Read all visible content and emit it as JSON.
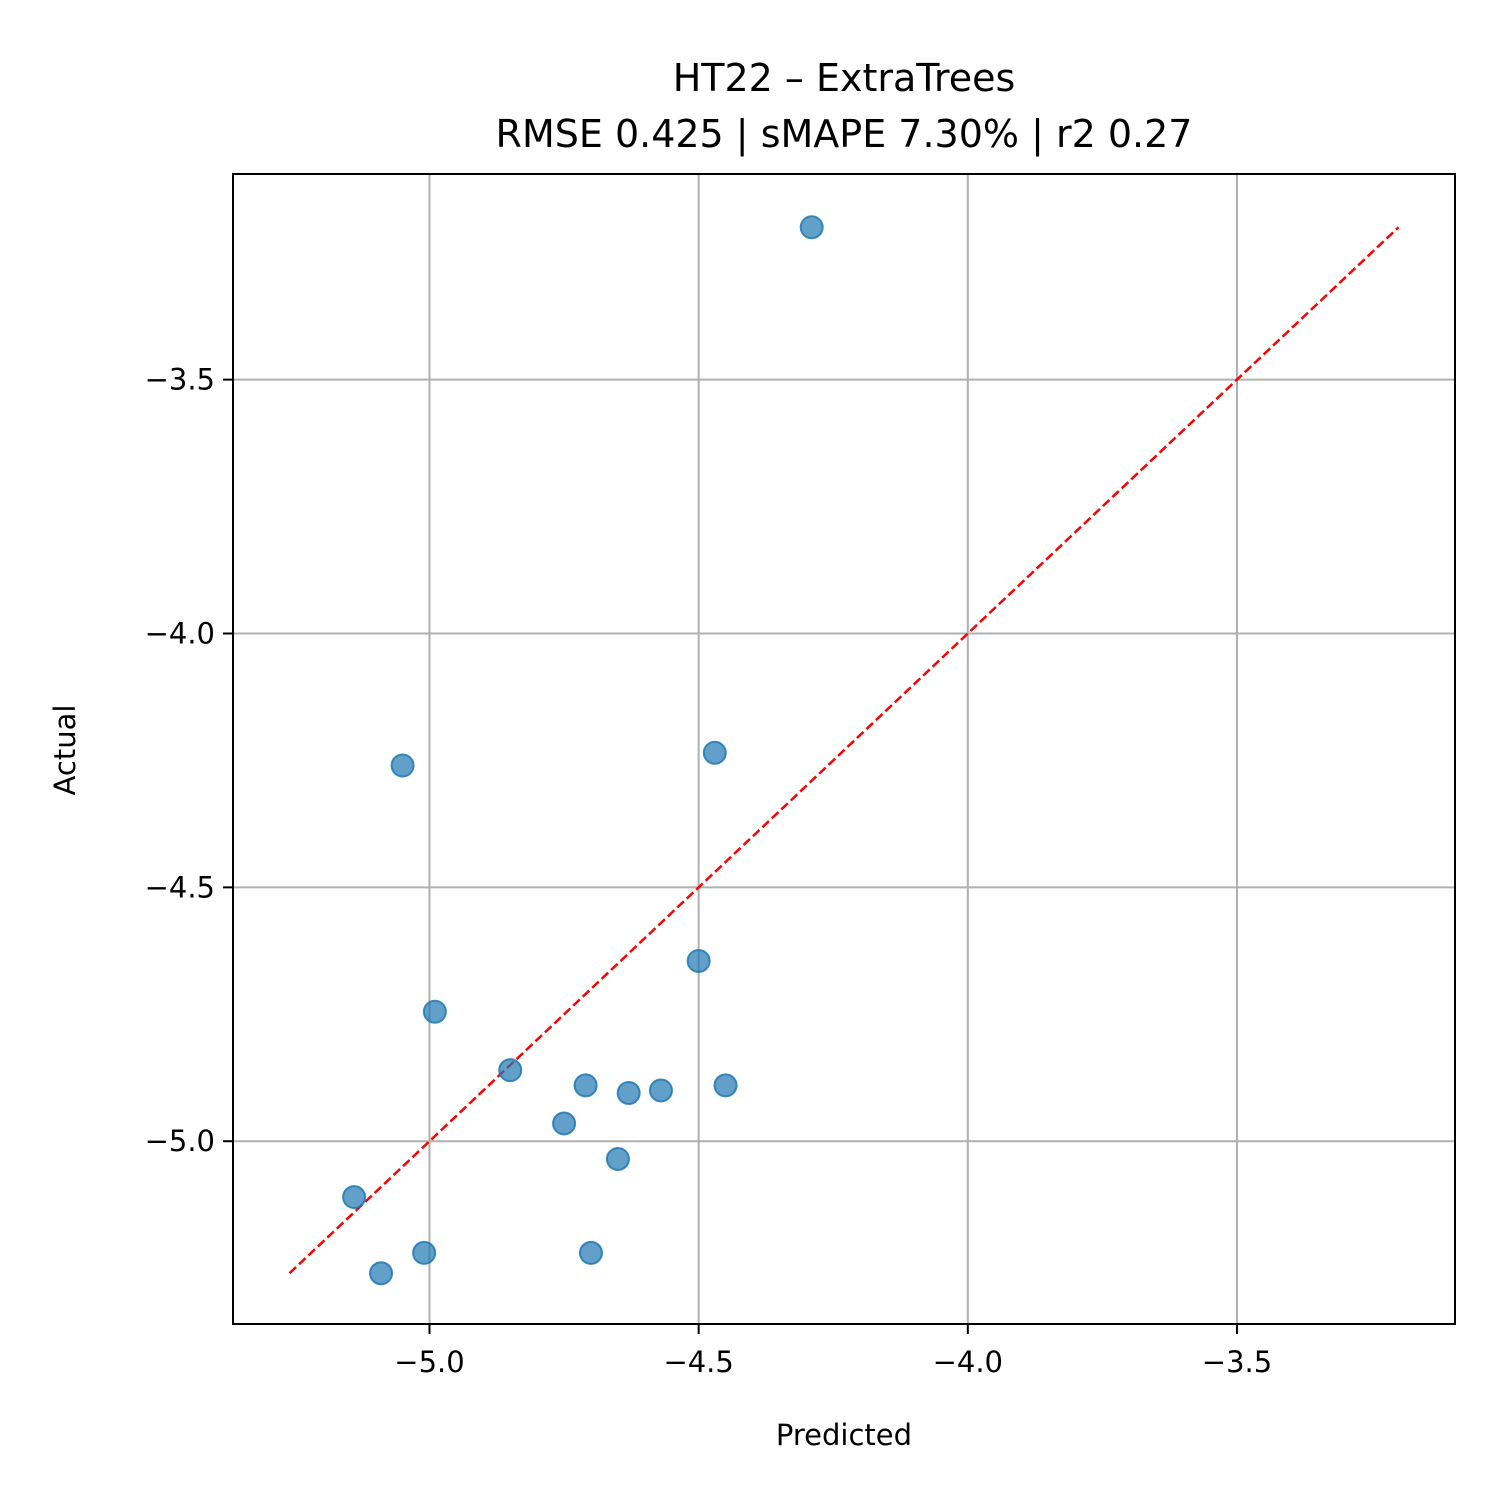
{
  "chart_data": {
    "type": "scatter",
    "title": "HT22 – ExtraTrees",
    "subtitle": "RMSE 0.425 | sMAPE 7.30%  | r2 0.27",
    "xlabel": "Predicted",
    "ylabel": "Actual",
    "xlim": [
      -5.365,
      -3.095
    ],
    "ylim": [
      -5.36,
      -3.095
    ],
    "xticks": [
      -5.0,
      -4.5,
      -4.0,
      -3.5
    ],
    "yticks": [
      -5.0,
      -4.5,
      -4.0,
      -3.5
    ],
    "xtick_labels": [
      "−5.0",
      "−4.5",
      "−4.0",
      "−3.5"
    ],
    "ytick_labels": [
      "−5.0",
      "−4.5",
      "−4.0",
      "−3.5"
    ],
    "grid": true,
    "point_color": "#1f77b4",
    "reference_line": {
      "from": [
        -5.26,
        -5.26
      ],
      "to": [
        -3.2,
        -3.2
      ],
      "color": "#ff0000",
      "style": "dashed"
    },
    "points": [
      {
        "x": -4.29,
        "y": -3.2
      },
      {
        "x": -5.05,
        "y": -4.26
      },
      {
        "x": -4.47,
        "y": -4.235
      },
      {
        "x": -4.5,
        "y": -4.645
      },
      {
        "x": -4.99,
        "y": -4.745
      },
      {
        "x": -4.85,
        "y": -4.86
      },
      {
        "x": -4.71,
        "y": -4.89
      },
      {
        "x": -4.45,
        "y": -4.89
      },
      {
        "x": -4.57,
        "y": -4.9
      },
      {
        "x": -4.63,
        "y": -4.905
      },
      {
        "x": -4.75,
        "y": -4.965
      },
      {
        "x": -4.65,
        "y": -5.035
      },
      {
        "x": -5.14,
        "y": -5.11
      },
      {
        "x": -5.01,
        "y": -5.22
      },
      {
        "x": -4.7,
        "y": -5.22
      },
      {
        "x": -5.09,
        "y": -5.26
      }
    ]
  }
}
